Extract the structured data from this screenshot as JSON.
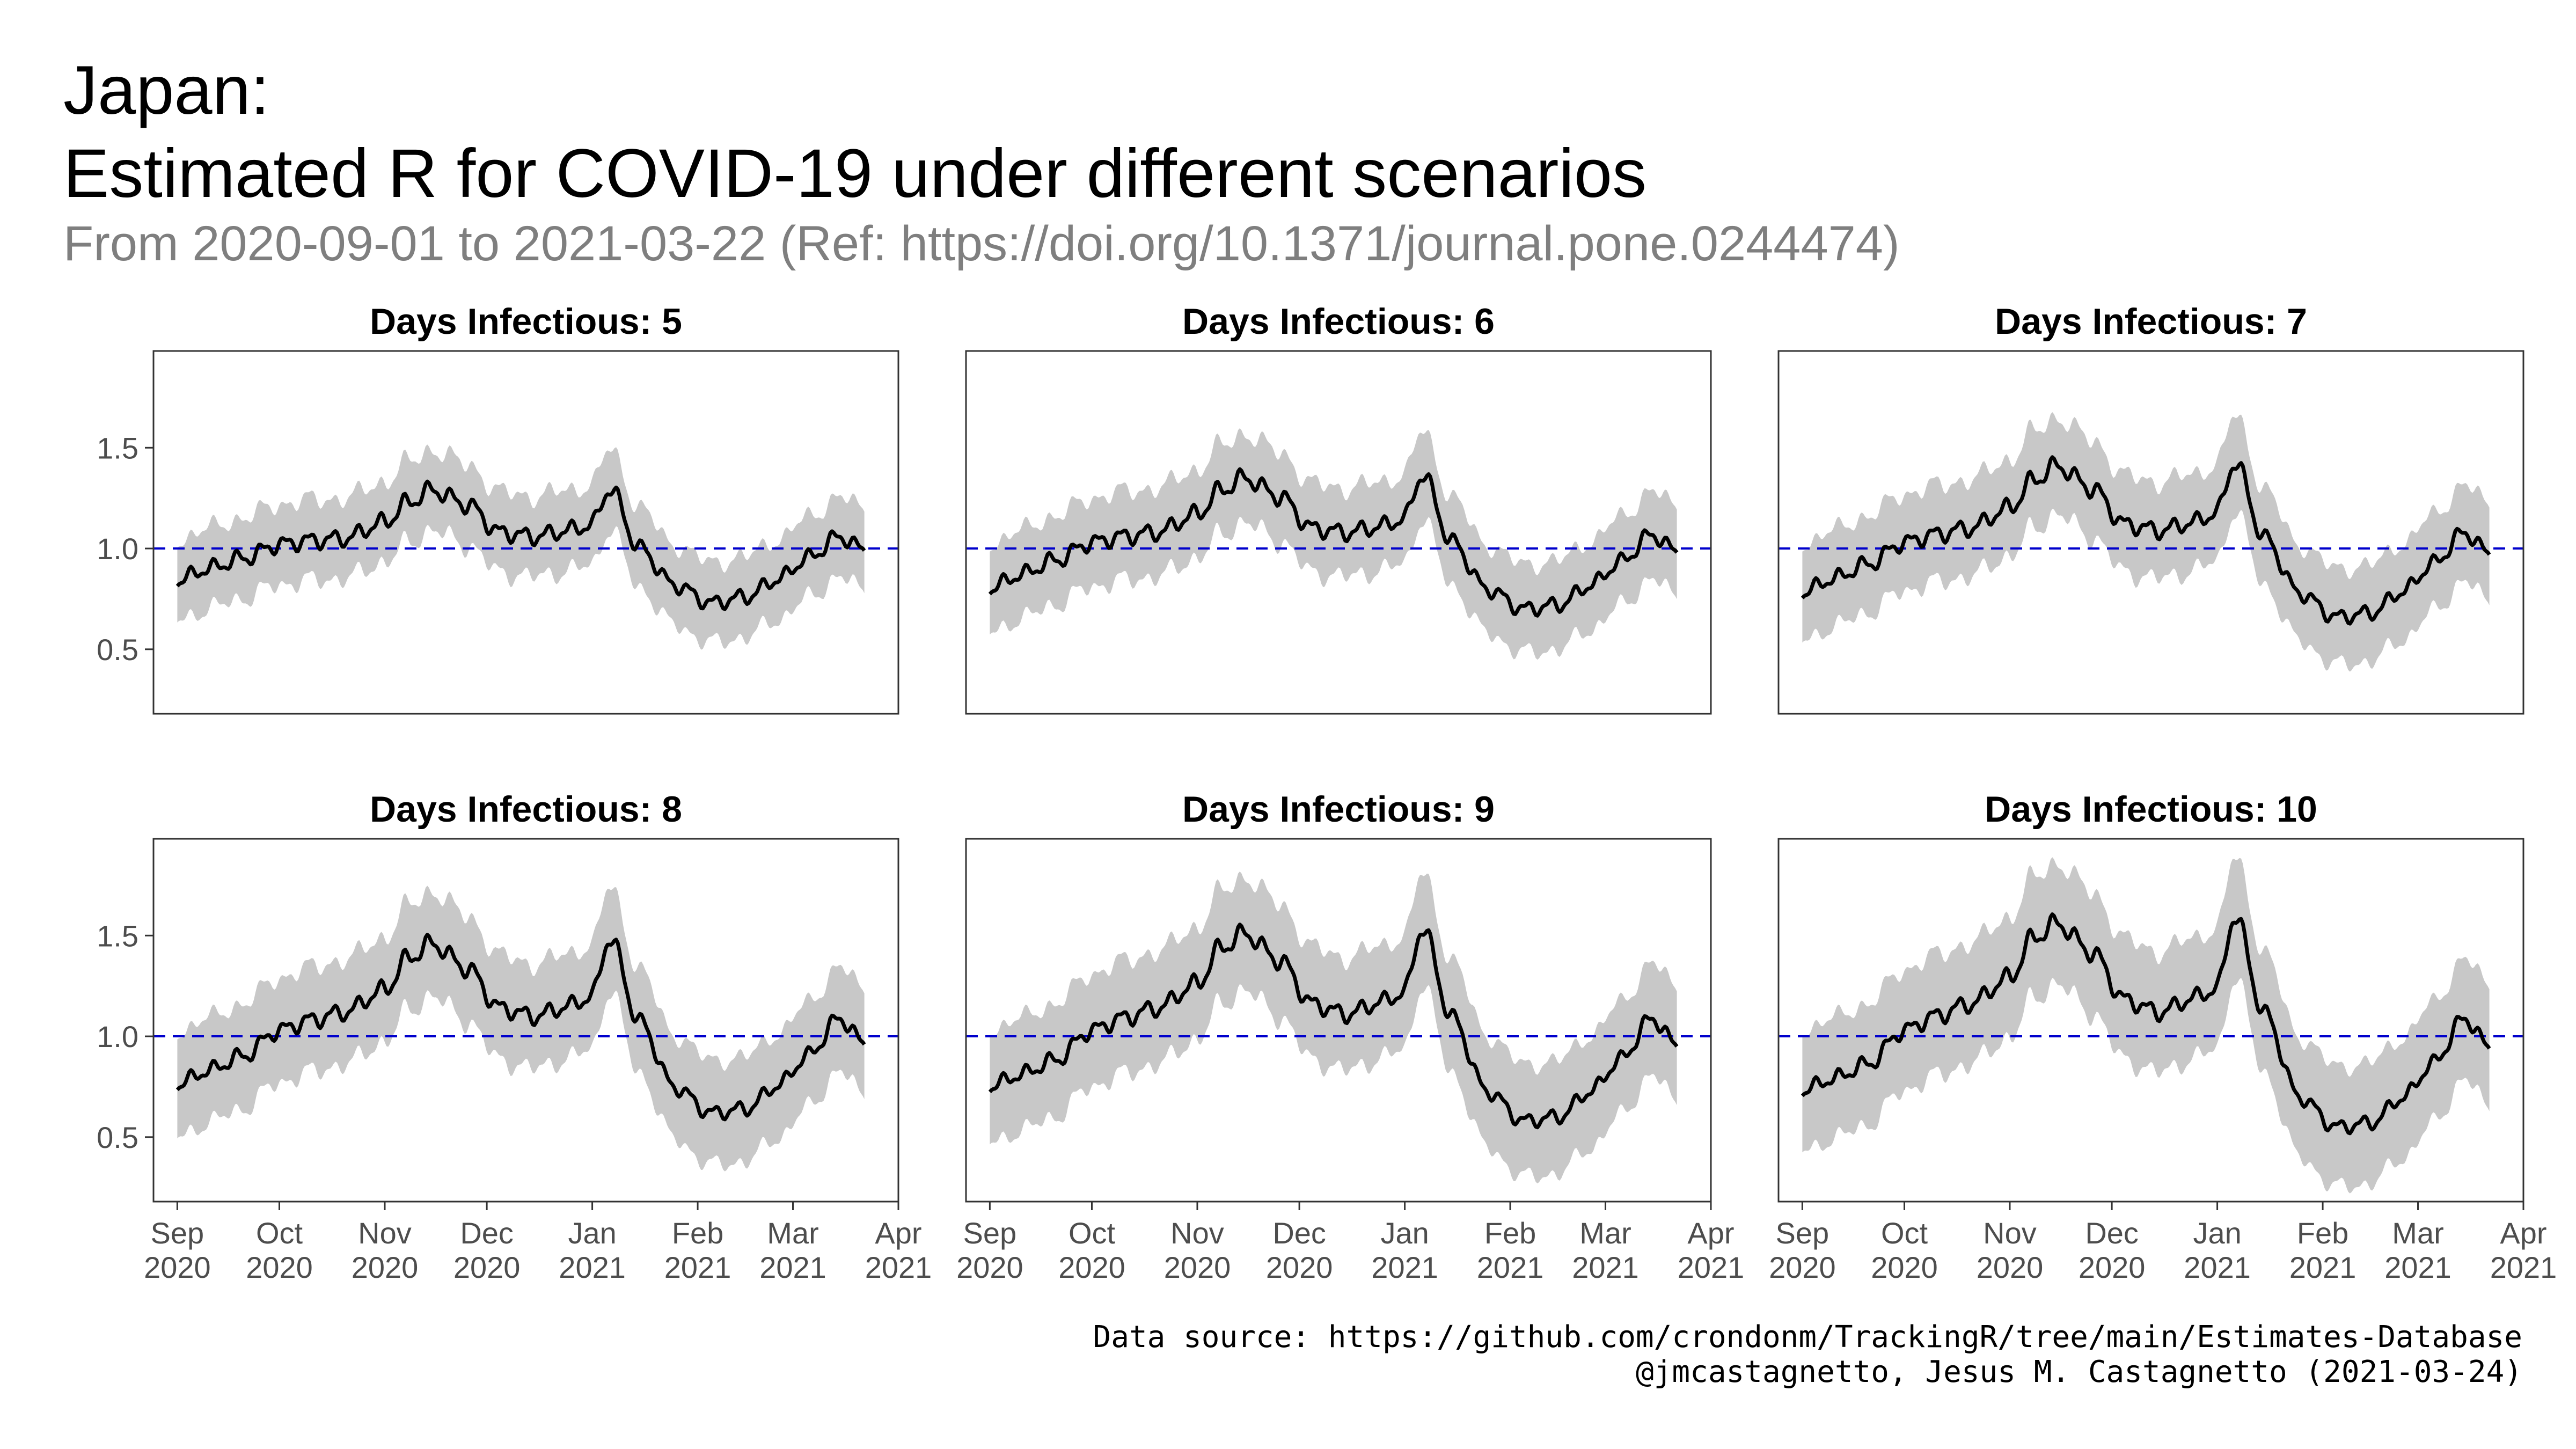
{
  "header": {
    "title_line1": "Japan:",
    "title_line2": "Estimated R for COVID-19 under different scenarios",
    "subtitle": "From 2020-09-01 to 2021-03-22 (Ref: https://doi.org/10.1371/journal.pone.0244474)"
  },
  "caption": {
    "line1": "Data source: https://github.com/crondonm/TrackingR/tree/main/Estimates-Database",
    "line2": "@jmcastagnetto, Jesus M. Castagnetto (2021-03-24)"
  },
  "colors": {
    "line": "#000000",
    "ribbon": "#c8c8c8",
    "reference_line": "#0000cc",
    "panel_border": "#333333",
    "subtitle": "#7f7f7f"
  },
  "chart_data": {
    "type": "line",
    "facet_label_prefix": "Days Infectious: ",
    "x_range": [
      "2020-08-25",
      "2021-04-01"
    ],
    "y_range": [
      0.18,
      1.98
    ],
    "x_ticks": [
      {
        "date": "2020-09-01",
        "month": "Sep",
        "year": "2020"
      },
      {
        "date": "2020-10-01",
        "month": "Oct",
        "year": "2020"
      },
      {
        "date": "2020-11-01",
        "month": "Nov",
        "year": "2020"
      },
      {
        "date": "2020-12-01",
        "month": "Dec",
        "year": "2020"
      },
      {
        "date": "2021-01-01",
        "month": "Jan",
        "year": "2021"
      },
      {
        "date": "2021-02-01",
        "month": "Feb",
        "year": "2021"
      },
      {
        "date": "2021-03-01",
        "month": "Mar",
        "year": "2021"
      },
      {
        "date": "2021-04-01",
        "month": "Apr",
        "year": "2021"
      }
    ],
    "y_ticks": [
      "0.5",
      "1.0",
      "1.5"
    ],
    "reference_line": 1.0,
    "grid": false,
    "legend": "none",
    "panels": [
      {
        "days_infectious": "5",
        "ci_halfwidth": 0.2,
        "x": [
          "2020-09-01",
          "2020-09-10",
          "2020-09-20",
          "2020-10-01",
          "2020-10-10",
          "2020-10-20",
          "2020-11-01",
          "2020-11-08",
          "2020-11-15",
          "2020-11-25",
          "2020-12-05",
          "2020-12-15",
          "2020-12-25",
          "2021-01-01",
          "2021-01-06",
          "2021-01-15",
          "2021-01-25",
          "2021-02-05",
          "2021-02-15",
          "2021-02-25",
          "2021-03-05",
          "2021-03-15",
          "2021-03-22"
        ],
        "y": [
          0.84,
          0.9,
          0.95,
          1.02,
          1.04,
          1.05,
          1.13,
          1.23,
          1.29,
          1.22,
          1.08,
          1.06,
          1.09,
          1.12,
          1.3,
          1.0,
          0.82,
          0.73,
          0.76,
          0.85,
          0.95,
          1.06,
          0.99
        ]
      },
      {
        "days_infectious": "6",
        "ci_halfwidth": 0.22,
        "x": [
          "2020-09-01",
          "2020-09-10",
          "2020-09-20",
          "2020-10-01",
          "2020-10-10",
          "2020-10-20",
          "2020-11-01",
          "2020-11-08",
          "2020-11-15",
          "2020-11-25",
          "2020-12-05",
          "2020-12-15",
          "2020-12-25",
          "2021-01-01",
          "2021-01-06",
          "2021-01-15",
          "2021-01-25",
          "2021-02-05",
          "2021-02-15",
          "2021-02-25",
          "2021-03-05",
          "2021-03-15",
          "2021-03-22"
        ],
        "y": [
          0.8,
          0.87,
          0.94,
          1.03,
          1.06,
          1.08,
          1.17,
          1.29,
          1.35,
          1.26,
          1.1,
          1.08,
          1.11,
          1.15,
          1.37,
          1.03,
          0.8,
          0.7,
          0.72,
          0.82,
          0.93,
          1.07,
          0.98
        ]
      },
      {
        "days_infectious": "7",
        "ci_halfwidth": 0.24,
        "x": [
          "2020-09-01",
          "2020-09-10",
          "2020-09-20",
          "2020-10-01",
          "2020-10-10",
          "2020-10-20",
          "2020-11-01",
          "2020-11-08",
          "2020-11-15",
          "2020-11-25",
          "2020-12-05",
          "2020-12-15",
          "2020-12-25",
          "2021-01-01",
          "2021-01-06",
          "2021-01-15",
          "2021-01-25",
          "2021-02-05",
          "2021-02-15",
          "2021-02-25",
          "2021-03-05",
          "2021-03-15",
          "2021-03-22"
        ],
        "y": [
          0.78,
          0.85,
          0.92,
          1.03,
          1.07,
          1.1,
          1.2,
          1.34,
          1.41,
          1.3,
          1.12,
          1.09,
          1.13,
          1.18,
          1.43,
          1.05,
          0.78,
          0.66,
          0.68,
          0.79,
          0.92,
          1.08,
          0.97
        ]
      },
      {
        "days_infectious": "8",
        "ci_halfwidth": 0.26,
        "x": [
          "2020-09-01",
          "2020-09-10",
          "2020-09-20",
          "2020-10-01",
          "2020-10-10",
          "2020-10-20",
          "2020-11-01",
          "2020-11-08",
          "2020-11-15",
          "2020-11-25",
          "2020-12-05",
          "2020-12-15",
          "2020-12-25",
          "2021-01-01",
          "2021-01-06",
          "2021-01-15",
          "2021-01-25",
          "2021-02-05",
          "2021-02-15",
          "2021-02-25",
          "2021-03-05",
          "2021-03-15",
          "2021-03-22"
        ],
        "y": [
          0.76,
          0.83,
          0.9,
          1.03,
          1.08,
          1.12,
          1.23,
          1.39,
          1.46,
          1.34,
          1.14,
          1.1,
          1.15,
          1.2,
          1.49,
          1.07,
          0.75,
          0.62,
          0.64,
          0.76,
          0.9,
          1.09,
          0.96
        ]
      },
      {
        "days_infectious": "9",
        "ci_halfwidth": 0.28,
        "x": [
          "2020-09-01",
          "2020-09-10",
          "2020-09-20",
          "2020-10-01",
          "2020-10-10",
          "2020-10-20",
          "2020-11-01",
          "2020-11-08",
          "2020-11-15",
          "2020-11-25",
          "2020-12-05",
          "2020-12-15",
          "2020-12-25",
          "2021-01-01",
          "2021-01-06",
          "2021-01-15",
          "2021-01-25",
          "2021-02-05",
          "2021-02-15",
          "2021-02-25",
          "2021-03-05",
          "2021-03-15",
          "2021-03-22"
        ],
        "y": [
          0.75,
          0.81,
          0.88,
          1.03,
          1.09,
          1.14,
          1.26,
          1.44,
          1.51,
          1.38,
          1.16,
          1.11,
          1.17,
          1.22,
          1.54,
          1.09,
          0.73,
          0.58,
          0.6,
          0.73,
          0.88,
          1.09,
          0.95
        ]
      },
      {
        "days_infectious": "10",
        "ci_halfwidth": 0.3,
        "x": [
          "2020-09-01",
          "2020-09-10",
          "2020-09-20",
          "2020-10-01",
          "2020-10-10",
          "2020-10-20",
          "2020-11-01",
          "2020-11-08",
          "2020-11-15",
          "2020-11-25",
          "2020-12-05",
          "2020-12-15",
          "2020-12-25",
          "2021-01-01",
          "2021-01-06",
          "2021-01-15",
          "2021-01-25",
          "2021-02-05",
          "2021-02-15",
          "2021-02-25",
          "2021-03-05",
          "2021-03-15",
          "2021-03-22"
        ],
        "y": [
          0.73,
          0.79,
          0.86,
          1.03,
          1.1,
          1.16,
          1.29,
          1.49,
          1.56,
          1.42,
          1.18,
          1.12,
          1.19,
          1.24,
          1.6,
          1.11,
          0.7,
          0.55,
          0.57,
          0.7,
          0.86,
          1.09,
          0.94
        ]
      }
    ]
  }
}
